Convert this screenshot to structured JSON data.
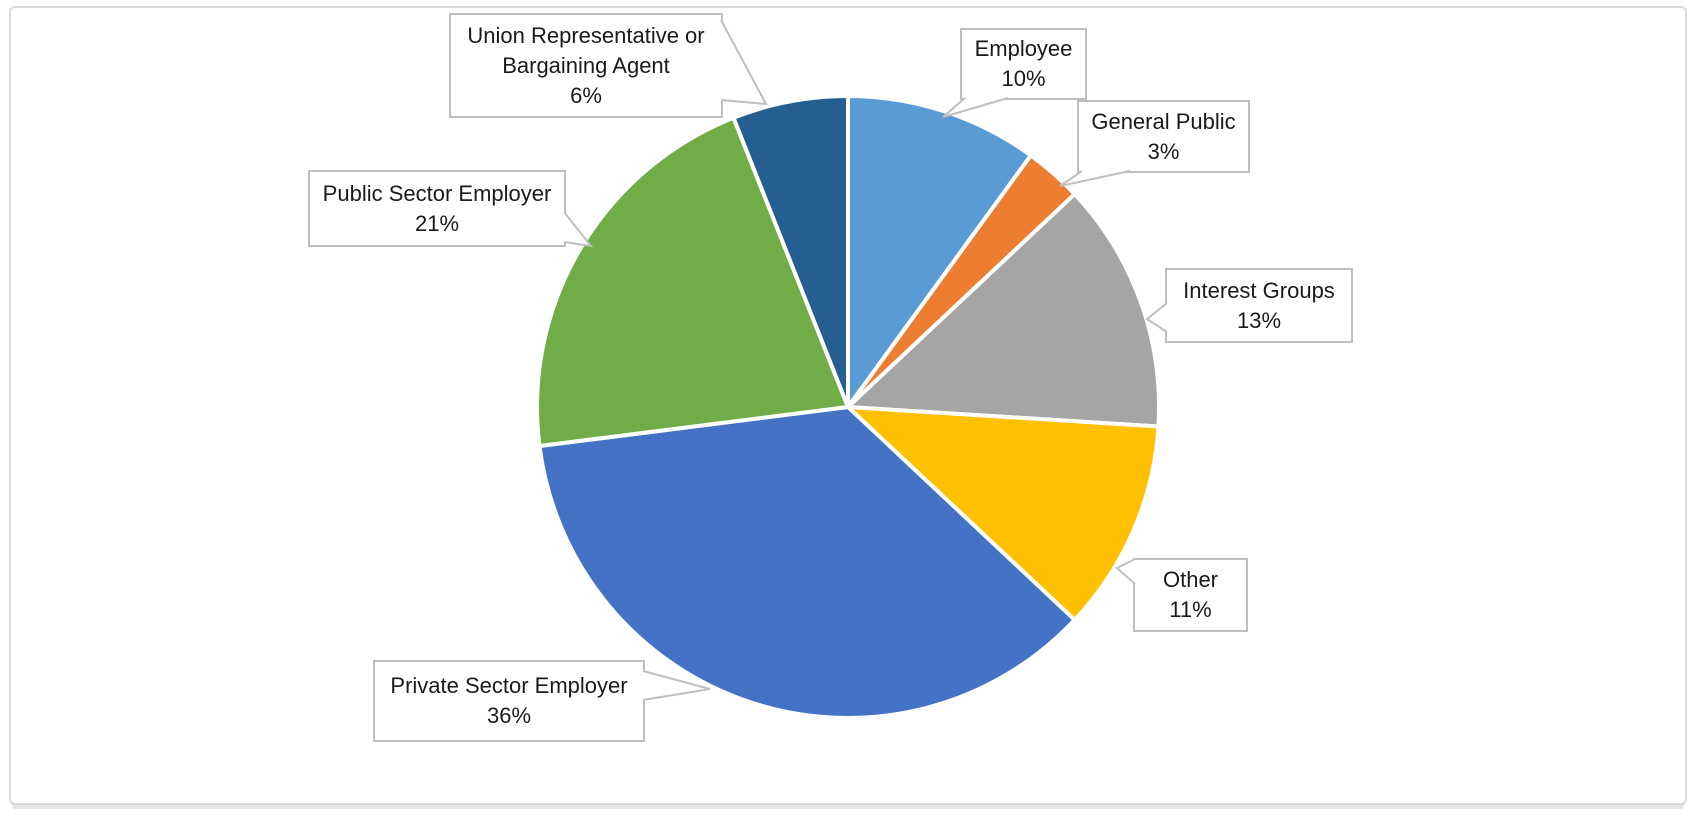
{
  "chart_data": {
    "type": "pie",
    "title": "",
    "unit": "%",
    "start_angle_deg": 0,
    "direction": "clockwise",
    "legend": "none",
    "label_style": "callout-boxes-with-leader-tails",
    "total": 100,
    "slices": [
      {
        "label": "Employee",
        "lines": [
          "Employee"
        ],
        "value": 10,
        "pct_label": "10%",
        "color": "#5B9BD5"
      },
      {
        "label": "General Public",
        "lines": [
          "General Public"
        ],
        "value": 3,
        "pct_label": "3%",
        "color": "#ED7D31"
      },
      {
        "label": "Interest Groups",
        "lines": [
          "Interest Groups"
        ],
        "value": 13,
        "pct_label": "13%",
        "color": "#A5A5A5"
      },
      {
        "label": "Other",
        "lines": [
          "Other"
        ],
        "value": 11,
        "pct_label": "11%",
        "color": "#FFC000"
      },
      {
        "label": "Private Sector Employer",
        "lines": [
          "Private Sector Employer"
        ],
        "value": 36,
        "pct_label": "36%",
        "color": "#4472C4"
      },
      {
        "label": "Public Sector Employer",
        "lines": [
          "Public Sector Employer"
        ],
        "value": 21,
        "pct_label": "21%",
        "color": "#70AD47"
      },
      {
        "label": "Union Representative or Bargaining Agent",
        "lines": [
          "Union Representative or",
          "Bargaining Agent"
        ],
        "value": 6,
        "pct_label": "6%",
        "color": "#255E91"
      }
    ],
    "slice_separator_color": "#FFFFFF",
    "callout_border_color": "#BFBFBF"
  }
}
